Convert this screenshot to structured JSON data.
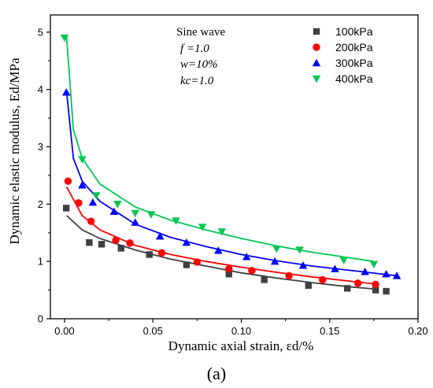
{
  "chart_data": {
    "type": "scatter",
    "xlabel": "Dynamic axial strain, εd/%",
    "ylabel": "Dynamic elastic modulus, Ed/MPa",
    "xlim": [
      -0.008,
      0.2
    ],
    "ylim": [
      0,
      5.3
    ],
    "xticks": [
      "0.00",
      "0.05",
      "0.10",
      "0.15",
      "0.20"
    ],
    "yticks": [
      "0",
      "1",
      "2",
      "3",
      "4",
      "5"
    ],
    "grid": false,
    "legend_position": "top-right",
    "annotations": [
      "Sine wave",
      "f =1.0",
      "w=10%",
      "kc=1.0"
    ],
    "panel_label": "(a)",
    "series": [
      {
        "name": "100kPa",
        "color": "#404040",
        "marker": "square",
        "points": [
          [
            0.001,
            1.93
          ],
          [
            0.014,
            1.33
          ],
          [
            0.021,
            1.3
          ],
          [
            0.032,
            1.23
          ],
          [
            0.048,
            1.12
          ],
          [
            0.069,
            0.94
          ],
          [
            0.093,
            0.78
          ],
          [
            0.113,
            0.68
          ],
          [
            0.138,
            0.58
          ],
          [
            0.16,
            0.53
          ],
          [
            0.176,
            0.5
          ],
          [
            0.182,
            0.48
          ]
        ],
        "fit": [
          [
            0.0012,
            1.8
          ],
          [
            0.01,
            1.55
          ],
          [
            0.02,
            1.4
          ],
          [
            0.04,
            1.2
          ],
          [
            0.06,
            1.04
          ],
          [
            0.08,
            0.92
          ],
          [
            0.1,
            0.8
          ],
          [
            0.12,
            0.71
          ],
          [
            0.14,
            0.63
          ],
          [
            0.16,
            0.56
          ],
          [
            0.175,
            0.52
          ]
        ]
      },
      {
        "name": "200kPa",
        "color": "#ff0000",
        "marker": "circle",
        "points": [
          [
            0.002,
            2.4
          ],
          [
            0.008,
            2.02
          ],
          [
            0.015,
            1.7
          ],
          [
            0.029,
            1.37
          ],
          [
            0.037,
            1.32
          ],
          [
            0.055,
            1.15
          ],
          [
            0.075,
            0.99
          ],
          [
            0.093,
            0.87
          ],
          [
            0.106,
            0.84
          ],
          [
            0.127,
            0.75
          ],
          [
            0.146,
            0.68
          ],
          [
            0.166,
            0.62
          ],
          [
            0.176,
            0.6
          ]
        ],
        "fit": [
          [
            0.0012,
            2.3
          ],
          [
            0.01,
            1.8
          ],
          [
            0.02,
            1.55
          ],
          [
            0.04,
            1.28
          ],
          [
            0.06,
            1.12
          ],
          [
            0.08,
            1.0
          ],
          [
            0.1,
            0.9
          ],
          [
            0.12,
            0.81
          ],
          [
            0.14,
            0.73
          ],
          [
            0.16,
            0.66
          ],
          [
            0.175,
            0.61
          ]
        ]
      },
      {
        "name": "300kPa",
        "color": "#0000ff",
        "marker": "triangle-up",
        "points": [
          [
            0.001,
            3.95
          ],
          [
            0.01,
            2.33
          ],
          [
            0.016,
            2.03
          ],
          [
            0.028,
            1.87
          ],
          [
            0.04,
            1.68
          ],
          [
            0.054,
            1.44
          ],
          [
            0.069,
            1.33
          ],
          [
            0.087,
            1.19
          ],
          [
            0.103,
            1.08
          ],
          [
            0.119,
            1.0
          ],
          [
            0.135,
            0.93
          ],
          [
            0.153,
            0.87
          ],
          [
            0.17,
            0.82
          ],
          [
            0.182,
            0.78
          ],
          [
            0.188,
            0.75
          ]
        ],
        "fit": [
          [
            0.0012,
            3.95
          ],
          [
            0.005,
            2.8
          ],
          [
            0.01,
            2.4
          ],
          [
            0.02,
            2.05
          ],
          [
            0.04,
            1.65
          ],
          [
            0.06,
            1.42
          ],
          [
            0.08,
            1.26
          ],
          [
            0.1,
            1.12
          ],
          [
            0.12,
            1.01
          ],
          [
            0.14,
            0.92
          ],
          [
            0.16,
            0.85
          ],
          [
            0.188,
            0.75
          ]
        ]
      },
      {
        "name": "400kPa",
        "color": "#00c850",
        "marker": "triangle-down",
        "points": [
          [
            0.0,
            4.9
          ],
          [
            0.01,
            2.78
          ],
          [
            0.018,
            2.15
          ],
          [
            0.03,
            2.0
          ],
          [
            0.04,
            1.84
          ],
          [
            0.049,
            1.82
          ],
          [
            0.063,
            1.71
          ],
          [
            0.078,
            1.6
          ],
          [
            0.089,
            1.52
          ],
          [
            0.12,
            1.22
          ],
          [
            0.133,
            1.2
          ],
          [
            0.158,
            1.02
          ],
          [
            0.175,
            0.95
          ]
        ],
        "fit": [
          [
            0.0012,
            4.9
          ],
          [
            0.005,
            3.3
          ],
          [
            0.01,
            2.8
          ],
          [
            0.02,
            2.35
          ],
          [
            0.04,
            1.95
          ],
          [
            0.06,
            1.72
          ],
          [
            0.08,
            1.55
          ],
          [
            0.1,
            1.4
          ],
          [
            0.12,
            1.27
          ],
          [
            0.14,
            1.16
          ],
          [
            0.16,
            1.07
          ],
          [
            0.175,
            1.0
          ]
        ]
      }
    ]
  }
}
